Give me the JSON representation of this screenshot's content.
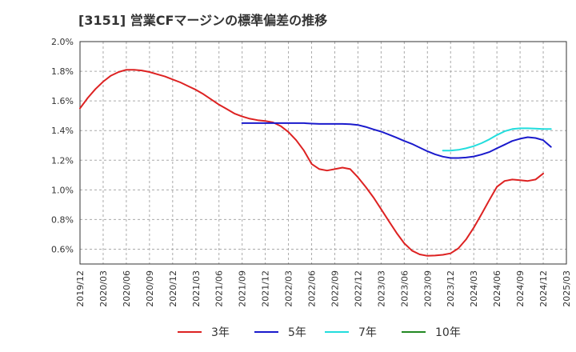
{
  "title": "[3151]  営業CFマージンの標準偏差の推移",
  "chart_data": {
    "type": "line",
    "title": "[3151]  営業CFマージンの標準偏差の推移",
    "xlabel": "",
    "ylabel": "",
    "ylim": [
      0.5,
      2.0
    ],
    "grid": true,
    "legend_position": "bottom",
    "x_ticks": [
      "2019/12",
      "2020/03",
      "2020/06",
      "2020/09",
      "2020/12",
      "2021/03",
      "2021/06",
      "2021/09",
      "2021/12",
      "2022/03",
      "2022/06",
      "2022/09",
      "2022/12",
      "2023/03",
      "2023/06",
      "2023/09",
      "2023/12",
      "2024/03",
      "2024/06",
      "2024/09",
      "2024/12",
      "2025/03"
    ],
    "y_ticks": [
      {
        "value": 0.6,
        "label": "0.6%"
      },
      {
        "value": 0.8,
        "label": "0.8%"
      },
      {
        "value": 1.0,
        "label": "1.0%"
      },
      {
        "value": 1.2,
        "label": "1.2%"
      },
      {
        "value": 1.4,
        "label": "1.4%"
      },
      {
        "value": 1.6,
        "label": "1.6%"
      },
      {
        "value": 1.8,
        "label": "1.8%"
      },
      {
        "value": 2.0,
        "label": "2.0%"
      }
    ],
    "series": [
      {
        "name": "3年",
        "color": "#dd2222",
        "points": [
          [
            "2019/12",
            1.55
          ],
          [
            "2020/01",
            1.62
          ],
          [
            "2020/02",
            1.68
          ],
          [
            "2020/03",
            1.73
          ],
          [
            "2020/04",
            1.77
          ],
          [
            "2020/05",
            1.795
          ],
          [
            "2020/06",
            1.81
          ],
          [
            "2020/07",
            1.81
          ],
          [
            "2020/08",
            1.805
          ],
          [
            "2020/09",
            1.795
          ],
          [
            "2020/10",
            1.78
          ],
          [
            "2020/11",
            1.765
          ],
          [
            "2020/12",
            1.745
          ],
          [
            "2021/01",
            1.725
          ],
          [
            "2021/02",
            1.7
          ],
          [
            "2021/03",
            1.675
          ],
          [
            "2021/04",
            1.645
          ],
          [
            "2021/05",
            1.61
          ],
          [
            "2021/06",
            1.575
          ],
          [
            "2021/07",
            1.545
          ],
          [
            "2021/08",
            1.515
          ],
          [
            "2021/09",
            1.495
          ],
          [
            "2021/10",
            1.48
          ],
          [
            "2021/11",
            1.47
          ],
          [
            "2021/12",
            1.465
          ],
          [
            "2022/01",
            1.455
          ],
          [
            "2022/02",
            1.43
          ],
          [
            "2022/03",
            1.39
          ],
          [
            "2022/04",
            1.335
          ],
          [
            "2022/05",
            1.265
          ],
          [
            "2022/06",
            1.175
          ],
          [
            "2022/07",
            1.14
          ],
          [
            "2022/08",
            1.13
          ],
          [
            "2022/09",
            1.14
          ],
          [
            "2022/10",
            1.15
          ],
          [
            "2022/11",
            1.14
          ],
          [
            "2022/12",
            1.085
          ],
          [
            "2023/01",
            1.02
          ],
          [
            "2023/02",
            0.95
          ],
          [
            "2023/03",
            0.87
          ],
          [
            "2023/04",
            0.79
          ],
          [
            "2023/05",
            0.71
          ],
          [
            "2023/06",
            0.64
          ],
          [
            "2023/07",
            0.59
          ],
          [
            "2023/08",
            0.565
          ],
          [
            "2023/09",
            0.555
          ],
          [
            "2023/10",
            0.557
          ],
          [
            "2023/11",
            0.562
          ],
          [
            "2023/12",
            0.572
          ],
          [
            "2024/01",
            0.605
          ],
          [
            "2024/02",
            0.665
          ],
          [
            "2024/03",
            0.745
          ],
          [
            "2024/04",
            0.835
          ],
          [
            "2024/05",
            0.93
          ],
          [
            "2024/06",
            1.02
          ],
          [
            "2024/07",
            1.06
          ],
          [
            "2024/08",
            1.07
          ],
          [
            "2024/09",
            1.065
          ],
          [
            "2024/10",
            1.06
          ],
          [
            "2024/11",
            1.07
          ],
          [
            "2024/12",
            1.11
          ]
        ]
      },
      {
        "name": "5年",
        "color": "#1a1acc",
        "points": [
          [
            "2021/09",
            1.45
          ],
          [
            "2021/10",
            1.45
          ],
          [
            "2021/11",
            1.45
          ],
          [
            "2021/12",
            1.45
          ],
          [
            "2022/01",
            1.45
          ],
          [
            "2022/02",
            1.45
          ],
          [
            "2022/03",
            1.45
          ],
          [
            "2022/04",
            1.45
          ],
          [
            "2022/05",
            1.45
          ],
          [
            "2022/06",
            1.447
          ],
          [
            "2022/07",
            1.445
          ],
          [
            "2022/08",
            1.445
          ],
          [
            "2022/09",
            1.445
          ],
          [
            "2022/10",
            1.445
          ],
          [
            "2022/11",
            1.443
          ],
          [
            "2022/12",
            1.438
          ],
          [
            "2023/01",
            1.425
          ],
          [
            "2023/02",
            1.408
          ],
          [
            "2023/03",
            1.393
          ],
          [
            "2023/04",
            1.373
          ],
          [
            "2023/05",
            1.352
          ],
          [
            "2023/06",
            1.33
          ],
          [
            "2023/07",
            1.31
          ],
          [
            "2023/08",
            1.285
          ],
          [
            "2023/09",
            1.26
          ],
          [
            "2023/10",
            1.24
          ],
          [
            "2023/11",
            1.224
          ],
          [
            "2023/12",
            1.215
          ],
          [
            "2024/01",
            1.215
          ],
          [
            "2024/02",
            1.218
          ],
          [
            "2024/03",
            1.225
          ],
          [
            "2024/04",
            1.238
          ],
          [
            "2024/05",
            1.255
          ],
          [
            "2024/06",
            1.28
          ],
          [
            "2024/07",
            1.305
          ],
          [
            "2024/08",
            1.33
          ],
          [
            "2024/09",
            1.345
          ],
          [
            "2024/10",
            1.355
          ],
          [
            "2024/11",
            1.35
          ],
          [
            "2024/12",
            1.335
          ],
          [
            "2025/01",
            1.29
          ]
        ]
      },
      {
        "name": "7年",
        "color": "#22dddd",
        "points": [
          [
            "2023/11",
            1.265
          ],
          [
            "2023/12",
            1.265
          ],
          [
            "2024/01",
            1.27
          ],
          [
            "2024/02",
            1.28
          ],
          [
            "2024/03",
            1.295
          ],
          [
            "2024/04",
            1.315
          ],
          [
            "2024/05",
            1.34
          ],
          [
            "2024/06",
            1.37
          ],
          [
            "2024/07",
            1.395
          ],
          [
            "2024/08",
            1.41
          ],
          [
            "2024/09",
            1.415
          ],
          [
            "2024/10",
            1.415
          ],
          [
            "2024/11",
            1.413
          ],
          [
            "2024/12",
            1.41
          ],
          [
            "2025/01",
            1.41
          ]
        ]
      },
      {
        "name": "10年",
        "color": "#228822",
        "points": []
      }
    ]
  }
}
